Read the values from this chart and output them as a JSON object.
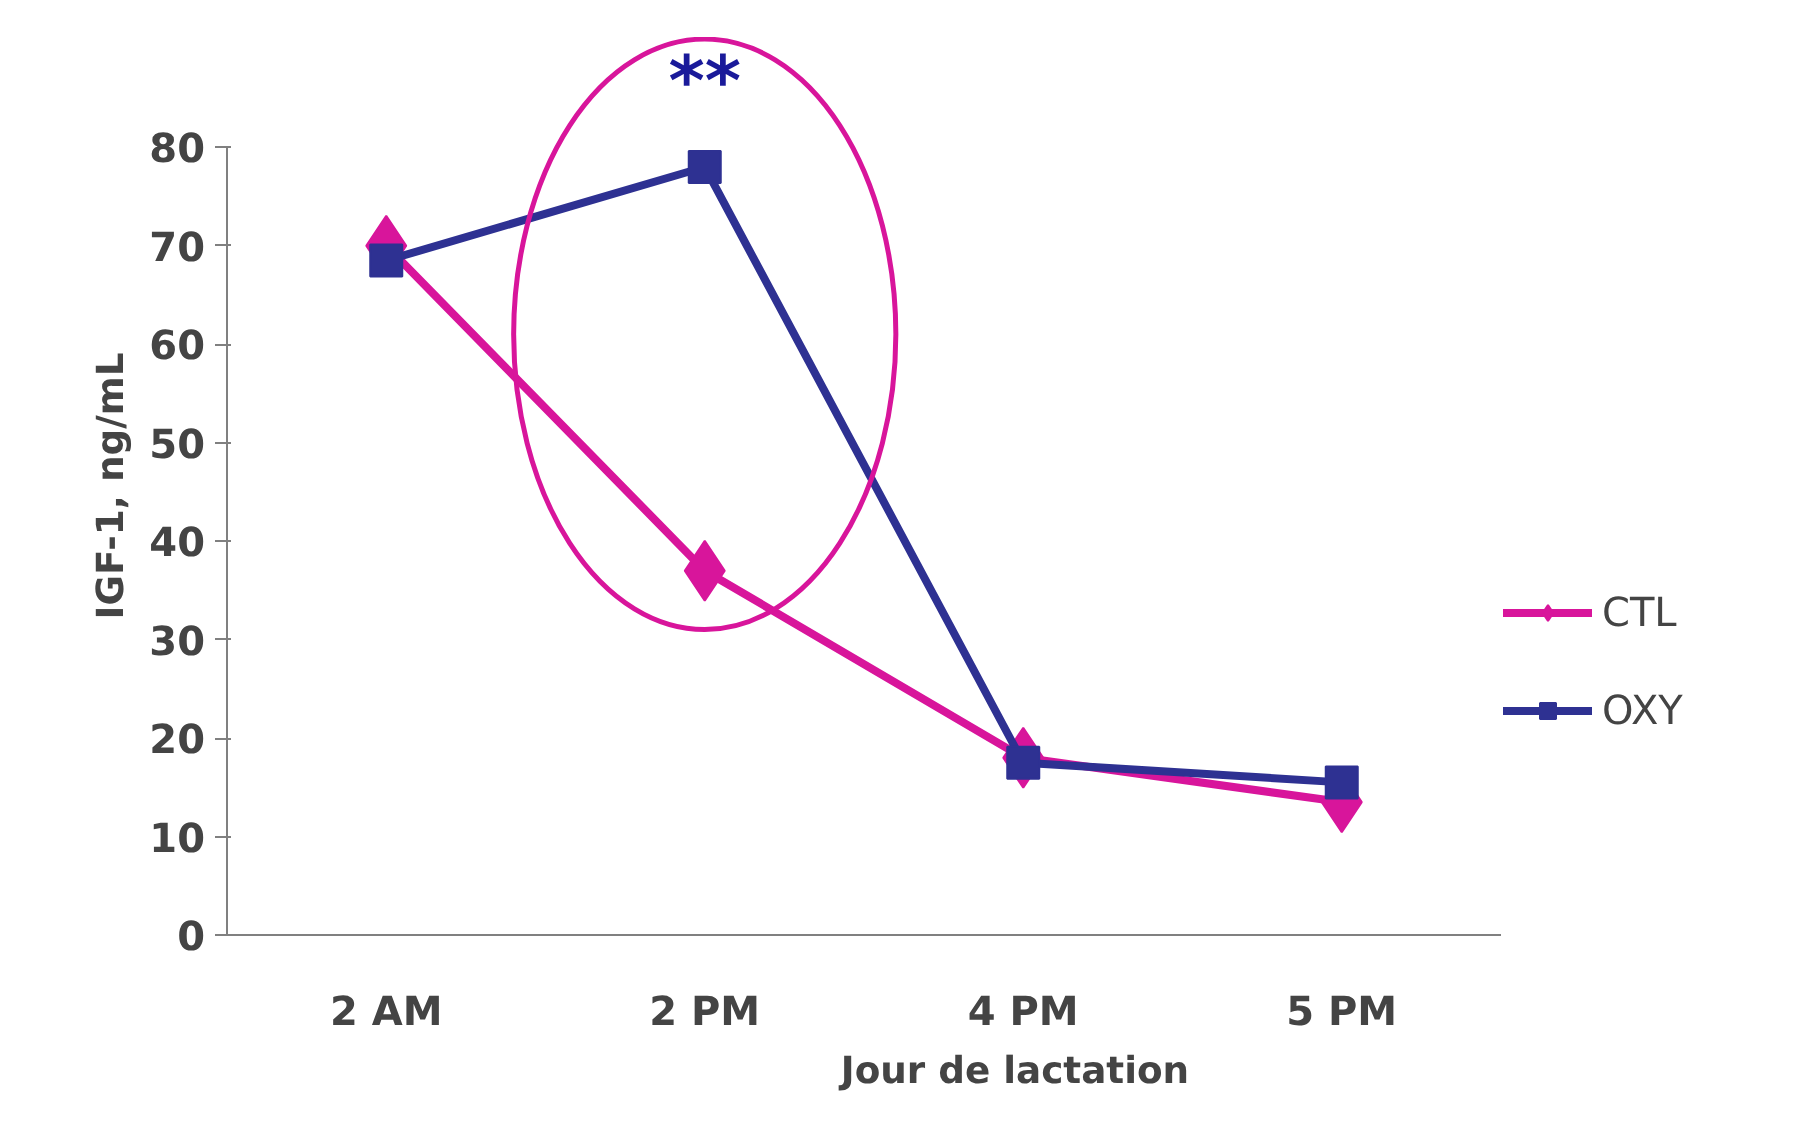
{
  "chart_data": {
    "type": "line",
    "xlabel": "Jour de lactation",
    "ylabel": "IGF-1, ng/mL",
    "categories": [
      "2 AM",
      "2 PM",
      "4 PM",
      "5 PM"
    ],
    "series": [
      {
        "name": "CTL",
        "color": "#d8159b",
        "marker": "diamond",
        "values": [
          70,
          37,
          18,
          13.5
        ]
      },
      {
        "name": "OXY",
        "color": "#2e3192",
        "marker": "square",
        "values": [
          68.5,
          78,
          17.5,
          15.5
        ]
      }
    ],
    "ylim": [
      0,
      80
    ],
    "yticks": [
      0,
      10,
      20,
      30,
      40,
      50,
      60,
      70,
      80
    ],
    "annotations": [
      {
        "text": "**",
        "x": "2 PM",
        "y": 78
      }
    ],
    "legend": "right",
    "grid": false
  }
}
